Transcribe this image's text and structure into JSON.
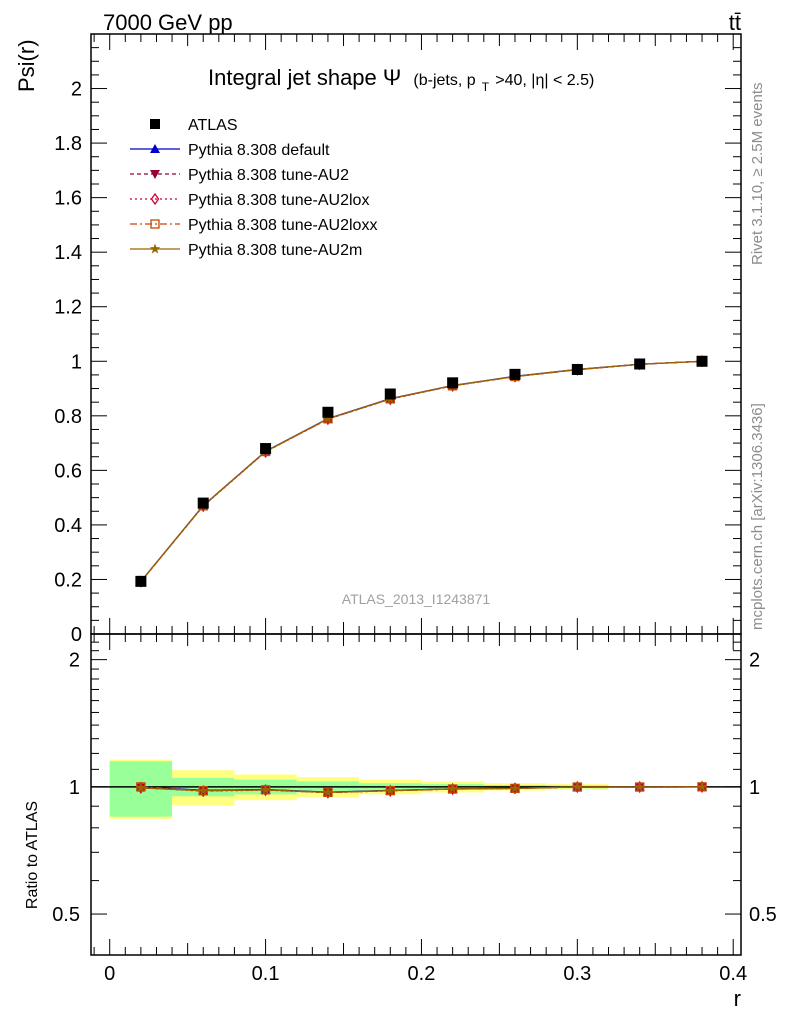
{
  "header": {
    "energy": "7000 GeV pp",
    "process": "tt̄"
  },
  "side": {
    "rivet": "Rivet 3.1.10, ≥ 2.5M events",
    "source": "mcplots.cern.ch [arXiv:1306.3436]"
  },
  "chart_data": {
    "type": "line",
    "title_main": "Integral jet shape",
    "title_symbol": "Ψ",
    "title_cut1": "(b-jets, p",
    "title_cut_sub": "T",
    "title_cut2": ">40, |η| < 2.5)",
    "analysis_label": "ATLAS_2013_I1243871",
    "ylabel": "Psi(r)",
    "xlabel": "r",
    "ratio_ylabel": "Ratio to ATLAS",
    "xlim": [
      -0.012,
      0.405
    ],
    "ylim": [
      0,
      2.2
    ],
    "ratio_ylim": [
      0.4,
      2.3
    ],
    "x_ticks": [
      0,
      0.1,
      0.2,
      0.3,
      0.4
    ],
    "x_tick_labels": [
      "0",
      "0.1",
      "0.2",
      "0.3",
      "0.4"
    ],
    "y_ticks": [
      0,
      0.2,
      0.4,
      0.6,
      0.8,
      1,
      1.2,
      1.4,
      1.6,
      1.8,
      2
    ],
    "y_tick_labels": [
      "0",
      "0.2",
      "0.4",
      "0.6",
      "0.8",
      "1",
      "1.2",
      "1.4",
      "1.6",
      "1.8",
      "2"
    ],
    "ratio_ticks": [
      0.5,
      1,
      2
    ],
    "ratio_tick_labels": [
      "0.5",
      "1",
      "2"
    ],
    "x": [
      0.02,
      0.06,
      0.1,
      0.14,
      0.18,
      0.22,
      0.26,
      0.3,
      0.34,
      0.38
    ],
    "bin_edges": [
      0,
      0.04,
      0.08,
      0.12,
      0.16,
      0.2,
      0.24,
      0.28,
      0.32,
      0.36,
      0.4
    ],
    "data": {
      "name": "ATLAS",
      "values": [
        0.193,
        0.48,
        0.68,
        0.813,
        0.88,
        0.921,
        0.952,
        0.97,
        0.99,
        1.0
      ],
      "band_stat": [
        0.15,
        0.05,
        0.04,
        0.03,
        0.02,
        0.015,
        0.01,
        0.008,
        0.003,
        0.001
      ],
      "band_total": [
        0.16,
        0.095,
        0.07,
        0.055,
        0.04,
        0.03,
        0.02,
        0.015,
        0.004,
        0.001
      ]
    },
    "series": [
      {
        "name": "Pythia 8.308 default",
        "color": "#0000cc",
        "marker": "triangle-up",
        "dash": "",
        "values": [
          0.193,
          0.471,
          0.67,
          0.79,
          0.863,
          0.911,
          0.945,
          0.97,
          0.989,
          1.0
        ]
      },
      {
        "name": "Pythia 8.308 tune-AU2",
        "color": "#990033",
        "marker": "triangle-down",
        "dash": "4,3",
        "values": [
          0.192,
          0.47,
          0.669,
          0.788,
          0.862,
          0.91,
          0.944,
          0.969,
          0.989,
          1.0
        ]
      },
      {
        "name": "Pythia 8.308 tune-AU2lox",
        "color": "#cc0033",
        "marker": "diamond-open",
        "dash": "2,3",
        "values": [
          0.192,
          0.469,
          0.668,
          0.788,
          0.861,
          0.91,
          0.944,
          0.969,
          0.989,
          1.0
        ]
      },
      {
        "name": "Pythia 8.308 tune-AU2loxx",
        "color": "#cc4400",
        "marker": "square-open",
        "dash": "7,3,2,3",
        "values": [
          0.193,
          0.47,
          0.669,
          0.789,
          0.862,
          0.91,
          0.944,
          0.969,
          0.989,
          1.0
        ]
      },
      {
        "name": "Pythia 8.308 tune-AU2m",
        "color": "#996600",
        "marker": "star",
        "dash": "",
        "values": [
          0.192,
          0.47,
          0.669,
          0.789,
          0.862,
          0.911,
          0.944,
          0.97,
          0.989,
          1.0
        ]
      }
    ],
    "colors": {
      "data": "#000000",
      "band_inner": "#99ff99",
      "band_outer": "#ffff80"
    },
    "legend_position": "top-left"
  }
}
